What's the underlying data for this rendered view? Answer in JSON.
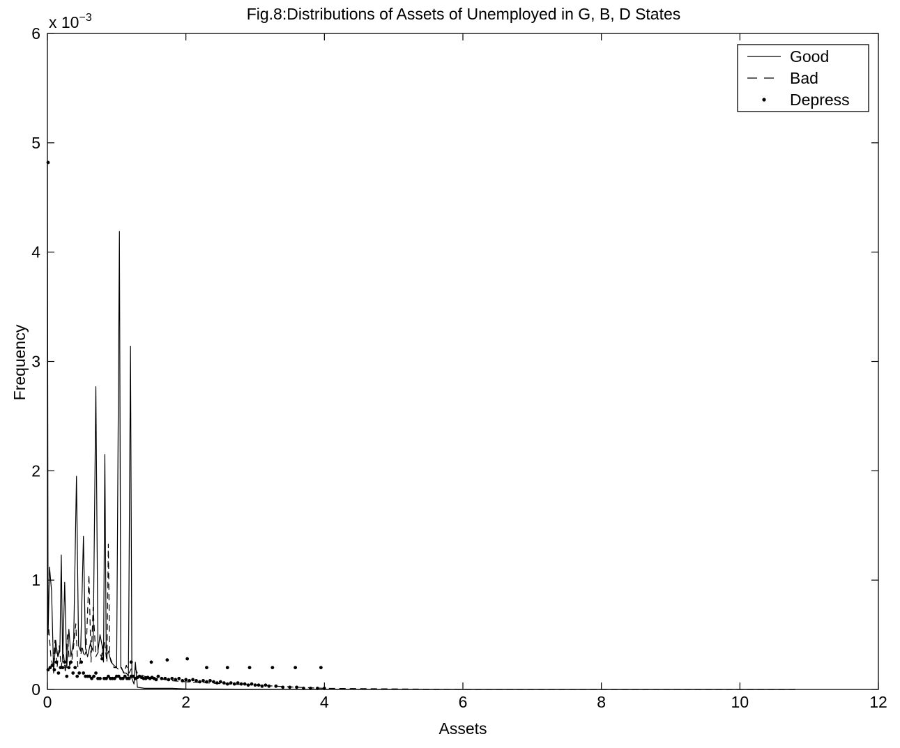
{
  "chart_data": {
    "type": "line",
    "title": "Fig.8:Distributions of Assets of Unemployed in G, B, D States",
    "xlabel": "Assets",
    "ylabel": "Frequency",
    "y_exponent_base": "x 10",
    "y_exponent_power": "−3",
    "xlim": [
      0,
      12
    ],
    "ylim": [
      0,
      6
    ],
    "y_scale_factor": 0.001,
    "x_ticks": [
      0,
      2,
      4,
      6,
      8,
      10,
      12
    ],
    "x_tick_labels": [
      "0",
      "2",
      "4",
      "6",
      "8",
      "10",
      "12"
    ],
    "y_ticks": [
      0,
      1,
      2,
      3,
      4,
      5,
      6
    ],
    "y_tick_labels": [
      "0",
      "1",
      "2",
      "3",
      "4",
      "5",
      "6"
    ],
    "grid": false,
    "legend_position": "top-right",
    "series": [
      {
        "name": "Good",
        "style": "solid",
        "x": [
          0,
          0.01,
          0.03,
          0.06,
          0.09,
          0.12,
          0.15,
          0.18,
          0.2,
          0.22,
          0.25,
          0.28,
          0.31,
          0.34,
          0.38,
          0.42,
          0.45,
          0.48,
          0.52,
          0.55,
          0.58,
          0.62,
          0.66,
          0.7,
          0.73,
          0.76,
          0.79,
          0.81,
          0.83,
          0.85,
          0.88,
          0.92,
          0.96,
          1.0,
          1.04,
          1.06,
          1.08,
          1.11,
          1.14,
          1.17,
          1.2,
          1.22,
          1.25,
          1.27,
          1.3,
          1.4,
          1.6,
          1.8,
          2.0,
          2.5,
          3.0,
          3.5,
          4.0,
          5.0,
          6.0,
          7.0,
          8.0,
          9.0,
          10.0,
          10.8
        ],
        "y": [
          4.8,
          0.5,
          1.12,
          0.9,
          0.15,
          0.45,
          0.3,
          0.35,
          1.23,
          0.25,
          0.98,
          0.2,
          0.55,
          0.3,
          0.45,
          1.95,
          0.4,
          0.35,
          1.4,
          0.38,
          0.3,
          0.42,
          0.35,
          2.77,
          0.35,
          0.5,
          0.4,
          0.25,
          2.15,
          0.3,
          0.35,
          0.25,
          0.22,
          0.2,
          4.19,
          0.2,
          0.18,
          0.15,
          0.15,
          0.12,
          3.14,
          0.1,
          0.05,
          0.25,
          0.02,
          0.01,
          0.01,
          0.01,
          0.005,
          0.003,
          0.002,
          0.001,
          0.001,
          0.0,
          0.0,
          0.0,
          0.0,
          0.0,
          0.0,
          0.0
        ]
      },
      {
        "name": "Bad",
        "style": "dashed",
        "x": [
          0.02,
          0.05,
          0.08,
          0.11,
          0.14,
          0.17,
          0.2,
          0.23,
          0.26,
          0.29,
          0.32,
          0.35,
          0.38,
          0.41,
          0.44,
          0.47,
          0.5,
          0.53,
          0.56,
          0.6,
          0.63,
          0.66,
          0.7,
          0.74,
          0.78,
          0.82,
          0.86,
          0.88,
          0.9,
          0.93,
          0.96,
          1.0,
          1.03,
          1.07,
          1.1,
          1.14,
          1.18,
          1.22,
          1.26,
          1.3,
          1.4,
          1.6,
          1.8,
          2.0,
          2.3,
          2.6,
          3.0,
          3.3,
          3.6,
          4.0,
          6.0,
          8.0,
          10.0,
          10.8
        ],
        "y": [
          0.55,
          0.3,
          0.2,
          0.45,
          0.2,
          0.4,
          0.2,
          0.35,
          0.15,
          0.5,
          0.22,
          0.25,
          0.4,
          0.6,
          0.2,
          0.25,
          0.4,
          0.3,
          0.35,
          1.05,
          0.25,
          0.75,
          0.3,
          0.35,
          0.3,
          0.45,
          0.25,
          1.33,
          0.3,
          0.25,
          0.2,
          0.2,
          0.18,
          0.2,
          0.15,
          0.22,
          0.15,
          0.2,
          0.2,
          0.15,
          0.12,
          0.1,
          0.08,
          0.07,
          0.06,
          0.05,
          0.04,
          0.03,
          0.02,
          0.01,
          0.0,
          0.0,
          0.0,
          0.0
        ]
      },
      {
        "name": "Depress",
        "style": "dots",
        "x": [
          0.01,
          0.04,
          0.07,
          0.1,
          0.13,
          0.16,
          0.19,
          0.22,
          0.25,
          0.28,
          0.31,
          0.34,
          0.37,
          0.4,
          0.43,
          0.46,
          0.49,
          0.52,
          0.55,
          0.58,
          0.61,
          0.64,
          0.67,
          0.7,
          0.73,
          0.76,
          0.79,
          0.82,
          0.85,
          0.88,
          0.91,
          0.94,
          0.97,
          1.0,
          1.03,
          1.06,
          1.09,
          1.12,
          1.15,
          1.18,
          1.21,
          1.24,
          1.27,
          1.3,
          1.33,
          1.36,
          1.39,
          1.42,
          1.45,
          1.48,
          1.51,
          1.54,
          1.57,
          1.6,
          1.65,
          1.7,
          1.75,
          1.8,
          1.85,
          1.9,
          1.95,
          2.0,
          2.05,
          2.1,
          2.15,
          2.2,
          2.25,
          2.3,
          2.35,
          2.4,
          2.45,
          2.5,
          2.55,
          2.6,
          2.65,
          2.7,
          2.75,
          2.8,
          2.85,
          2.9,
          2.95,
          3.0,
          3.05,
          3.1,
          3.15,
          3.2,
          3.3,
          3.4,
          3.5,
          3.6,
          3.7,
          3.8,
          3.9,
          4.0,
          1.21,
          1.5,
          1.73,
          2.02,
          2.3,
          2.6,
          2.92,
          3.25,
          3.58,
          3.95,
          0.01
        ],
        "y": [
          0.18,
          0.2,
          0.22,
          0.18,
          0.25,
          0.15,
          0.2,
          0.2,
          0.25,
          0.12,
          0.2,
          0.25,
          0.15,
          0.2,
          0.12,
          0.15,
          0.25,
          0.15,
          0.12,
          0.12,
          0.12,
          0.1,
          0.12,
          0.15,
          0.1,
          0.1,
          0.28,
          0.1,
          0.1,
          0.12,
          0.1,
          0.1,
          0.1,
          0.12,
          0.12,
          0.1,
          0.1,
          0.12,
          0.1,
          0.1,
          0.12,
          0.12,
          0.1,
          0.11,
          0.12,
          0.11,
          0.1,
          0.1,
          0.11,
          0.1,
          0.11,
          0.1,
          0.09,
          0.12,
          0.1,
          0.1,
          0.09,
          0.1,
          0.09,
          0.1,
          0.08,
          0.09,
          0.08,
          0.09,
          0.08,
          0.07,
          0.08,
          0.07,
          0.08,
          0.07,
          0.06,
          0.07,
          0.06,
          0.05,
          0.06,
          0.05,
          0.06,
          0.05,
          0.05,
          0.04,
          0.05,
          0.04,
          0.04,
          0.03,
          0.04,
          0.03,
          0.03,
          0.02,
          0.02,
          0.02,
          0.01,
          0.01,
          0.01,
          0.01,
          0.25,
          0.25,
          0.27,
          0.28,
          0.2,
          0.2,
          0.2,
          0.2,
          0.2,
          0.2,
          4.82
        ]
      }
    ]
  }
}
